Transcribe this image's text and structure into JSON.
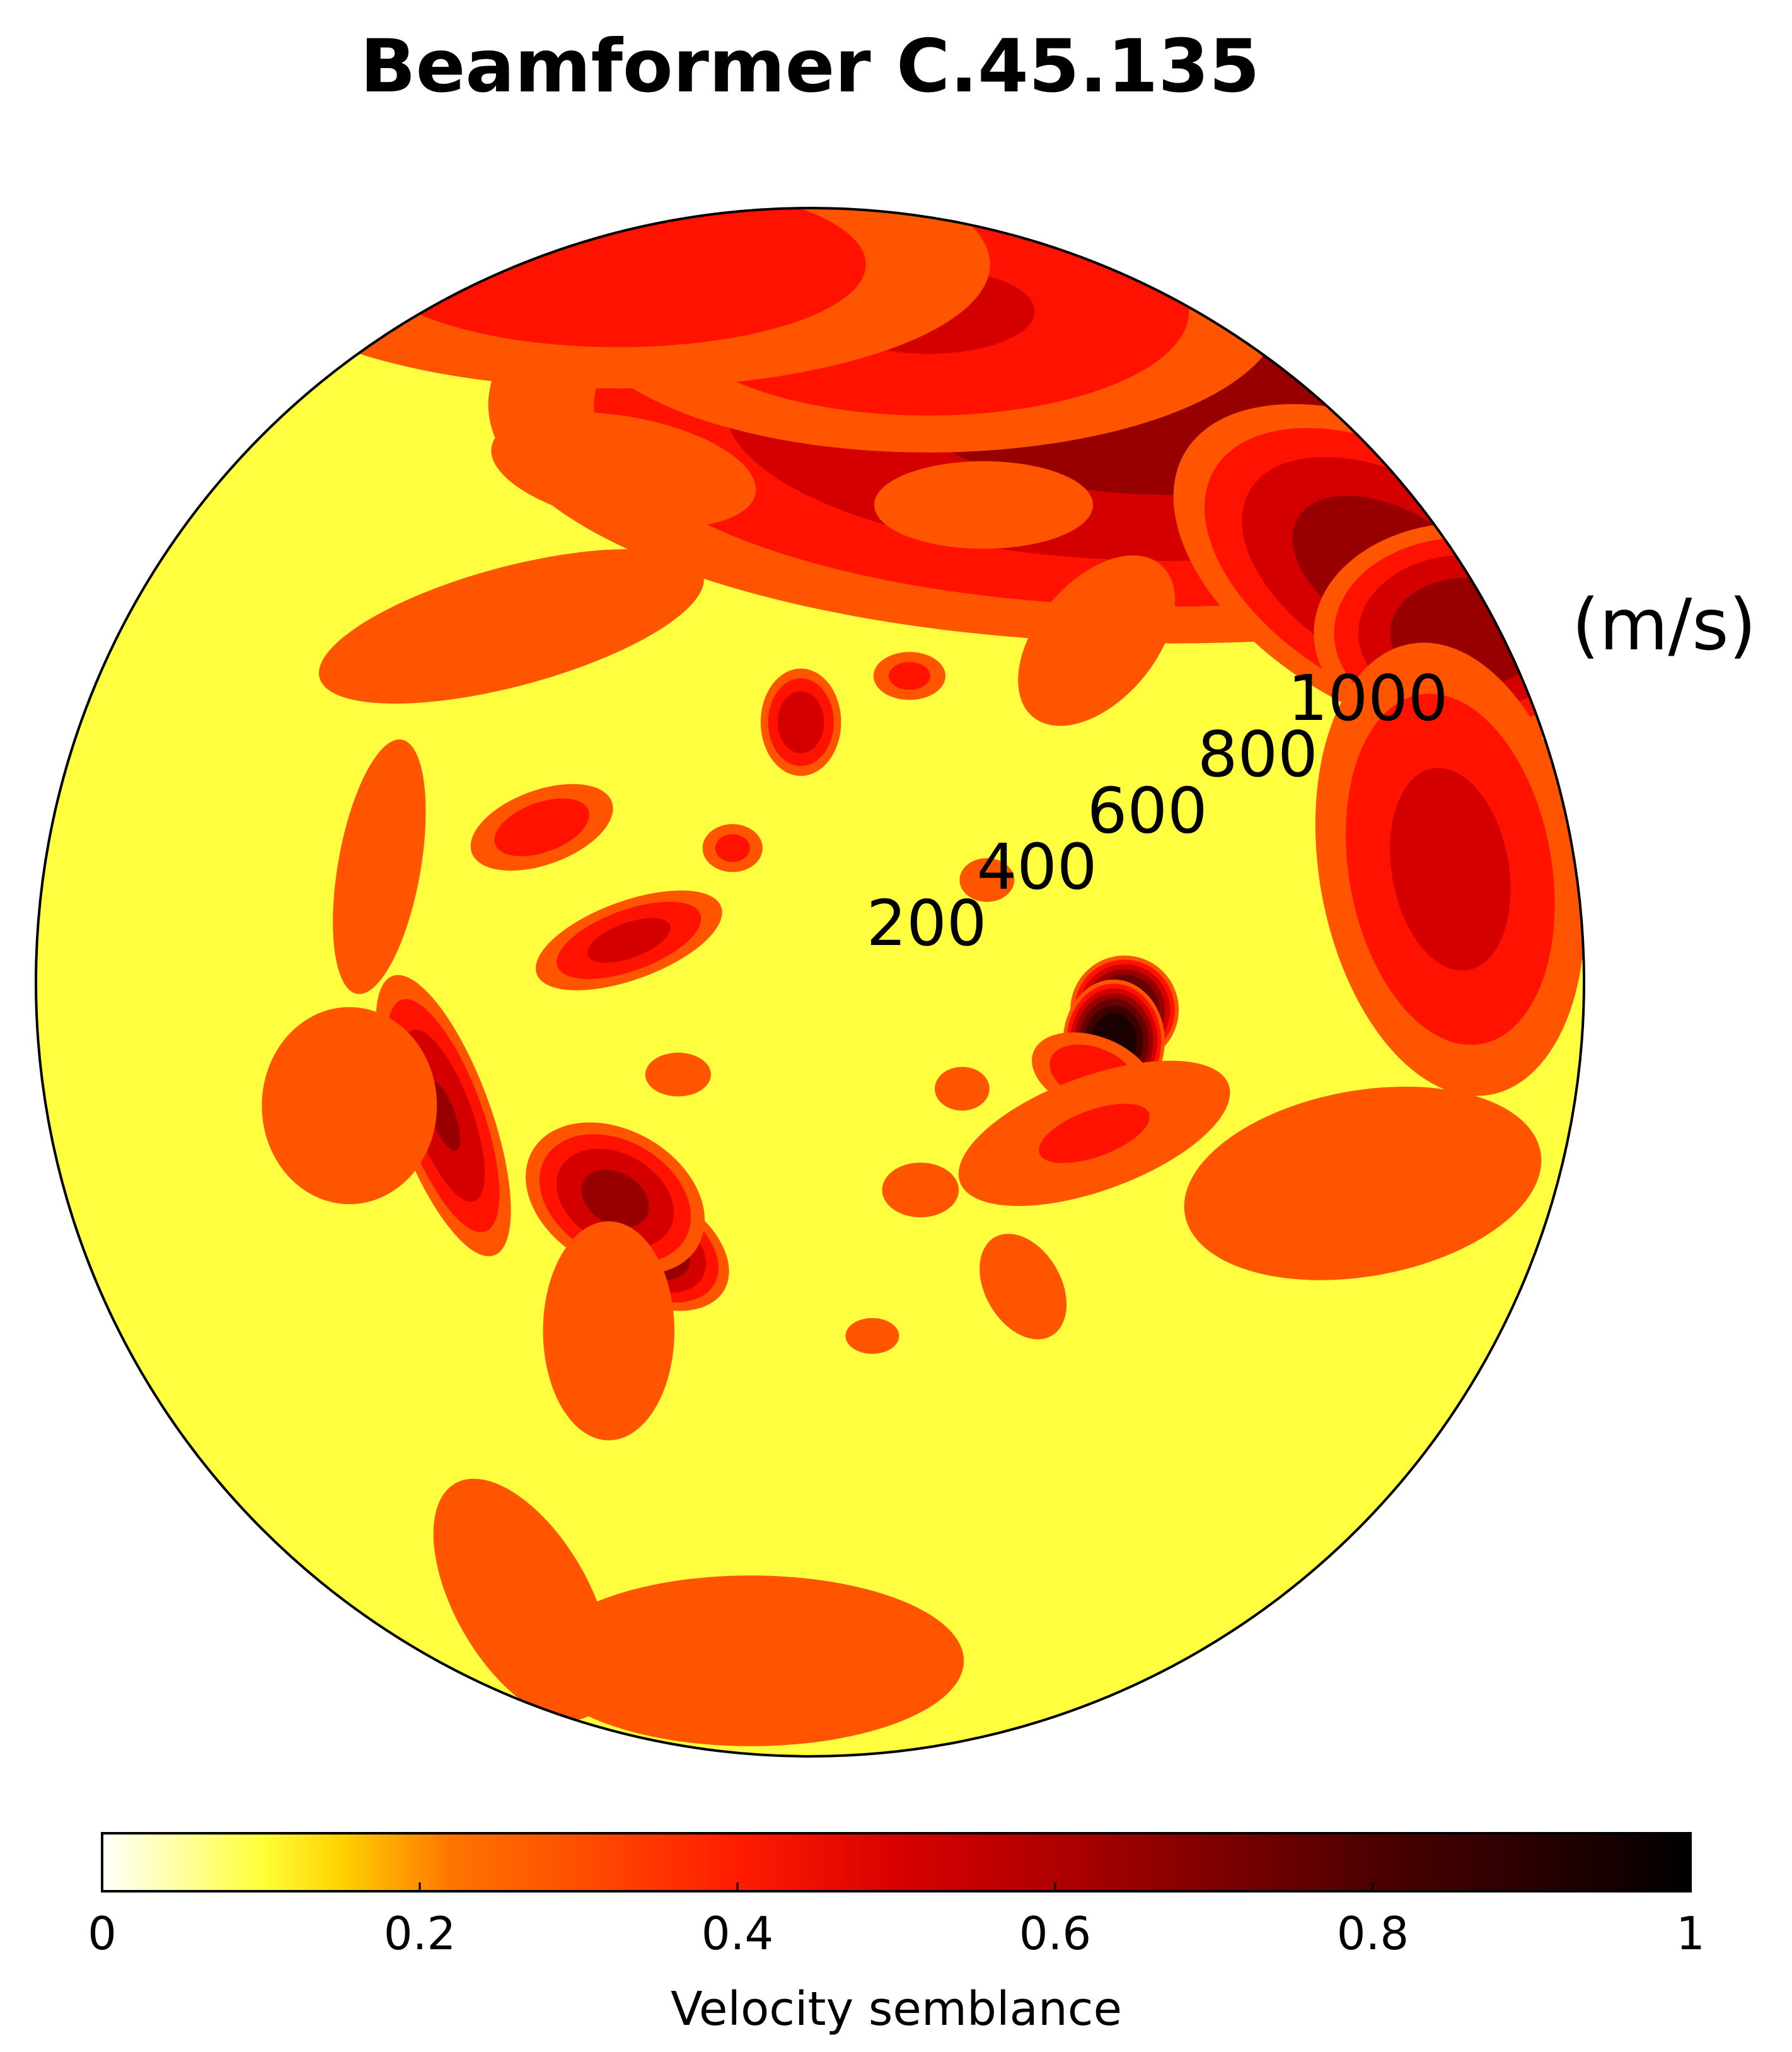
{
  "chart_data": {
    "type": "heatmap",
    "subtype": "polar-contour",
    "title": "Beamformer C.45.135",
    "radial_axis": {
      "unit_label": "(m/s)",
      "tick_labels": [
        "200",
        "400",
        "600",
        "800",
        "1000"
      ],
      "ticks": [
        200,
        400,
        600,
        800,
        1000
      ],
      "range": [
        0,
        1250
      ],
      "label_direction": "upper-right"
    },
    "colorbar": {
      "label": "Velocity semblance",
      "range": [
        0,
        1
      ],
      "tick_labels": [
        "0",
        "0.2",
        "0.4",
        "0.6",
        "0.8",
        "1"
      ],
      "ticks": [
        0,
        0.2,
        0.4,
        0.6,
        0.8,
        1
      ],
      "colormap": "hot_r",
      "placement": "bottom"
    },
    "contour_levels": [
      0,
      0.1,
      0.2,
      0.3,
      0.4,
      0.5,
      0.6,
      0.7,
      0.8,
      0.9,
      1.0
    ],
    "level_colors": [
      "#ffff40",
      "#ff5500",
      "#ff1200",
      "#d40000",
      "#980000",
      "#6a0000",
      "#3d0000",
      "#1a0000"
    ],
    "background_level": 0.1,
    "peak": {
      "azimuth_deg": 97,
      "velocity": 510,
      "semblance": 0.95
    },
    "blobs": [
      {
        "az": 32,
        "v": 1100,
        "rx": 1.0,
        "ry": 0.35,
        "rot": 0,
        "peak": 0.55
      },
      {
        "az": 55,
        "v": 1150,
        "rx": 0.35,
        "ry": 0.2,
        "rot": 30,
        "peak": 0.58
      },
      {
        "az": 62,
        "v": 1200,
        "rx": 0.22,
        "ry": 0.16,
        "rot": 0,
        "peak": 0.6
      },
      {
        "az": 10,
        "v": 1100,
        "rx": 0.55,
        "ry": 0.22,
        "rot": 0,
        "peak": 0.42
      },
      {
        "az": 345,
        "v": 1200,
        "rx": 0.6,
        "ry": 0.2,
        "rot": 0,
        "peak": 0.38
      },
      {
        "az": 80,
        "v": 1050,
        "rx": 0.35,
        "ry": 0.2,
        "rot": 80,
        "peak": 0.45
      },
      {
        "az": 95,
        "v": 510,
        "rx": 0.075,
        "ry": 0.075,
        "rot": 0,
        "peak": 0.88
      },
      {
        "az": 101,
        "v": 500,
        "rx": 0.07,
        "ry": 0.085,
        "rot": 0,
        "peak": 0.95
      },
      {
        "az": 108,
        "v": 480,
        "rx": 0.1,
        "ry": 0.06,
        "rot": 20,
        "peak": 0.4
      },
      {
        "az": 118,
        "v": 520,
        "rx": 0.25,
        "ry": 0.1,
        "rot": -20,
        "peak": 0.32
      },
      {
        "az": 110,
        "v": 950,
        "rx": 0.35,
        "ry": 0.18,
        "rot": -10,
        "peak": 0.28
      },
      {
        "az": 145,
        "v": 600,
        "rx": 0.12,
        "ry": 0.08,
        "rot": 60,
        "peak": 0.26
      },
      {
        "az": 185,
        "v": 1100,
        "rx": 0.45,
        "ry": 0.18,
        "rot": 0,
        "peak": 0.26
      },
      {
        "az": 205,
        "v": 1100,
        "rx": 0.3,
        "ry": 0.15,
        "rot": 60,
        "peak": 0.25
      },
      {
        "az": 212,
        "v": 500,
        "rx": 0.13,
        "ry": 0.08,
        "rot": 30,
        "peak": 0.62
      },
      {
        "az": 222,
        "v": 470,
        "rx": 0.14,
        "ry": 0.1,
        "rot": 30,
        "peak": 0.55
      },
      {
        "az": 210,
        "v": 650,
        "rx": 0.12,
        "ry": 0.2,
        "rot": 0,
        "peak": 0.3
      },
      {
        "az": 250,
        "v": 630,
        "rx": 0.07,
        "ry": 0.22,
        "rot": -20,
        "peak": 0.52
      },
      {
        "az": 255,
        "v": 770,
        "rx": 0.16,
        "ry": 0.18,
        "rot": 0,
        "peak": 0.3
      },
      {
        "az": 285,
        "v": 720,
        "rx": 0.08,
        "ry": 0.25,
        "rot": 10,
        "peak": 0.28
      },
      {
        "az": 283,
        "v": 300,
        "rx": 0.15,
        "ry": 0.06,
        "rot": -20,
        "peak": 0.45
      },
      {
        "az": 300,
        "v": 500,
        "rx": 0.12,
        "ry": 0.06,
        "rot": -20,
        "peak": 0.38
      },
      {
        "az": 320,
        "v": 750,
        "rx": 0.4,
        "ry": 0.12,
        "rot": -15,
        "peak": 0.27
      },
      {
        "az": 340,
        "v": 880,
        "rx": 0.3,
        "ry": 0.12,
        "rot": 10,
        "peak": 0.25
      },
      {
        "az": 358,
        "v": 420,
        "rx": 0.06,
        "ry": 0.08,
        "rot": 0,
        "peak": 0.5
      },
      {
        "az": 18,
        "v": 520,
        "rx": 0.06,
        "ry": 0.04,
        "rot": 0,
        "peak": 0.35
      },
      {
        "az": 20,
        "v": 820,
        "rx": 0.2,
        "ry": 0.08,
        "rot": 0,
        "peak": 0.3
      },
      {
        "az": 40,
        "v": 720,
        "rx": 0.12,
        "ry": 0.2,
        "rot": 40,
        "peak": 0.27
      },
      {
        "az": 330,
        "v": 250,
        "rx": 0.05,
        "ry": 0.04,
        "rot": 0,
        "peak": 0.35
      },
      {
        "az": 152,
        "v": 380,
        "rx": 0.07,
        "ry": 0.05,
        "rot": 0,
        "peak": 0.3
      },
      {
        "az": 170,
        "v": 580,
        "rx": 0.06,
        "ry": 0.04,
        "rot": 0,
        "peak": 0.25
      },
      {
        "az": 60,
        "v": 330,
        "rx": 0.05,
        "ry": 0.04,
        "rot": 0,
        "peak": 0.3
      },
      {
        "az": 235,
        "v": 260,
        "rx": 0.06,
        "ry": 0.04,
        "rot": 0,
        "peak": 0.3
      },
      {
        "az": 125,
        "v": 300,
        "rx": 0.05,
        "ry": 0.04,
        "rot": 0,
        "peak": 0.3
      }
    ]
  }
}
